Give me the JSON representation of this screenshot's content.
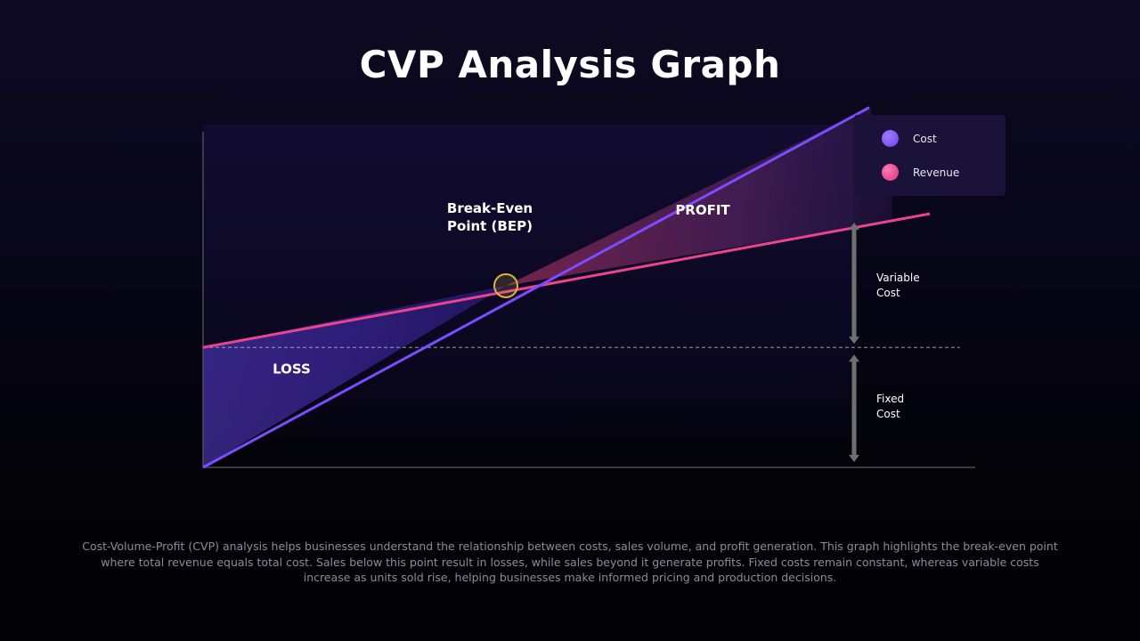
{
  "title": "CVP Analysis Graph",
  "description": "Cost-Volume-Profit (CVP) analysis helps businesses understand the relationship between costs, sales volume, and profit generation. This graph highlights the break-even point where total revenue equals total cost. Sales below this point result in losses, while sales beyond it generate profits. Fixed costs remain constant, whereas variable costs increase as units sold rise, helping businesses make informed pricing and production decisions.",
  "legend": [
    {
      "label": "Cost",
      "color": "#7c4dff"
    },
    {
      "label": "Revenue",
      "color": "#e9448c"
    }
  ],
  "colors": {
    "cost": "#7c4dff",
    "revenue": "#e9448c",
    "bep_marker": "#d9b440",
    "axis": "#5a5a6a",
    "arrow": "#707070"
  },
  "chart_data": {
    "type": "line",
    "xlim": [
      0,
      10
    ],
    "ylim": [
      0,
      10
    ],
    "grid": false,
    "legend_position": "top-right",
    "series": [
      {
        "name": "Cost",
        "x": [
          0,
          8.8
        ],
        "y": [
          0,
          10.5
        ]
      },
      {
        "name": "Revenue",
        "x": [
          0,
          9.6
        ],
        "y": [
          3.5,
          7.4
        ]
      }
    ],
    "fixed_cost_level": 3.5,
    "break_even": {
      "x": 4.0,
      "y": 5.3
    },
    "regions": [
      {
        "label": "LOSS",
        "from_x": 0,
        "to_x": 4.0
      },
      {
        "label": "PROFIT",
        "from_x": 4.0,
        "to_x": 8.8
      }
    ],
    "annotations": {
      "bep": [
        "Break-Even",
        "Point (BEP)"
      ],
      "loss": "LOSS",
      "profit": "PROFIT",
      "variable_cost": [
        "Variable",
        "Cost"
      ],
      "fixed_cost": [
        "Fixed",
        "Cost"
      ]
    }
  }
}
